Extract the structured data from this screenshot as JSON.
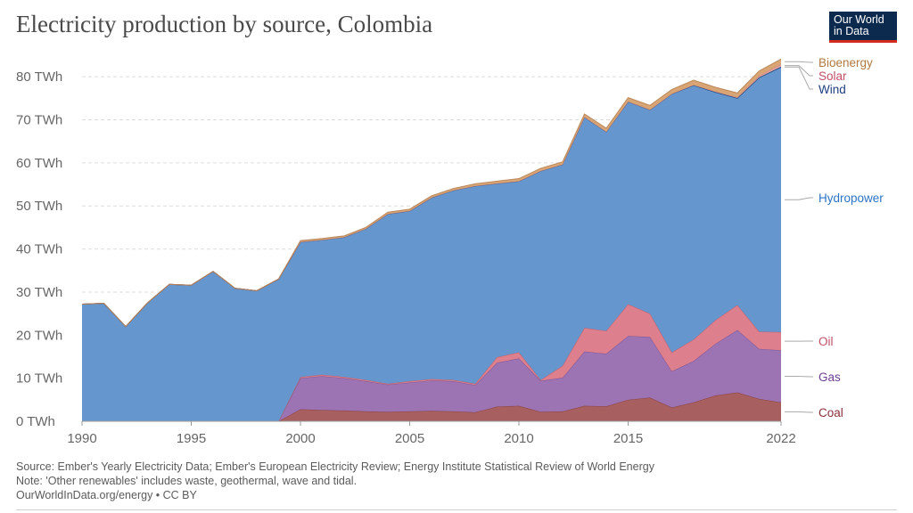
{
  "header": {
    "title": "Electricity production by source, Colombia",
    "logo_line1": "Our World",
    "logo_line2": "in Data"
  },
  "footer": {
    "source": "Source: Ember's Yearly Electricity Data; Ember's European Electricity Review; Energy Institute Statistical Review of World Energy",
    "note": "Note: 'Other renewables' includes waste, geothermal, wave and tidal.",
    "url": "OurWorldInData.org/energy • CC BY"
  },
  "chart_data": {
    "type": "area",
    "stacked": true,
    "x": [
      1990,
      1991,
      1992,
      1993,
      1994,
      1995,
      1996,
      1997,
      1998,
      1999,
      2000,
      2001,
      2002,
      2003,
      2004,
      2005,
      2006,
      2007,
      2008,
      2009,
      2010,
      2011,
      2012,
      2013,
      2014,
      2015,
      2016,
      2017,
      2018,
      2019,
      2020,
      2021,
      2022
    ],
    "xlim": [
      1990,
      2022
    ],
    "x_ticks": [
      1990,
      1995,
      2000,
      2005,
      2010,
      2015,
      2022
    ],
    "ylim": [
      0,
      85
    ],
    "y_ticks": [
      0,
      10,
      20,
      30,
      40,
      50,
      60,
      70,
      80
    ],
    "y_tick_labels": [
      "0 TWh",
      "10 TWh",
      "20 TWh",
      "30 TWh",
      "40 TWh",
      "50 TWh",
      "60 TWh",
      "70 TWh",
      "80 TWh"
    ],
    "grid": true,
    "legend_placement": "right, inline labels",
    "series": [
      {
        "name": "Coal",
        "color": "#a85f5f",
        "label_color": "#883039",
        "values": [
          0,
          0,
          0,
          0,
          0,
          0,
          0,
          0,
          0,
          0,
          2.8,
          2.6,
          2.5,
          2.3,
          2.2,
          2.3,
          2.4,
          2.3,
          2.1,
          3.4,
          3.6,
          2.2,
          2.3,
          3.6,
          3.5,
          5.0,
          5.5,
          3.2,
          4.4,
          6.0,
          6.7,
          5.2,
          4.4
        ]
      },
      {
        "name": "Gas",
        "color": "#9c74b4",
        "label_color": "#6d3e91",
        "values": [
          0,
          0,
          0,
          0,
          0,
          0,
          0,
          0,
          0,
          0,
          7.2,
          7.9,
          7.5,
          7.0,
          6.3,
          6.7,
          7.1,
          7.0,
          6.3,
          10.2,
          11.0,
          7.2,
          7.8,
          12.6,
          12.2,
          14.8,
          14.1,
          8.4,
          9.6,
          12.0,
          14.5,
          11.6,
          12.1
        ]
      },
      {
        "name": "Oil",
        "color": "#dd7f8d",
        "label_color": "#c15065",
        "values": [
          0,
          0,
          0,
          0,
          0,
          0,
          0,
          0,
          0,
          0,
          0.3,
          0.3,
          0.3,
          0.3,
          0.2,
          0.3,
          0.3,
          0.3,
          0.3,
          1.3,
          1.4,
          0.2,
          2.8,
          5.5,
          5.3,
          7.4,
          5.4,
          4.4,
          5.0,
          5.5,
          5.8,
          4.0,
          4.2
        ]
      },
      {
        "name": "Hydropower",
        "color": "#6596cd",
        "label_color": "#2c74c4",
        "values": [
          27.2,
          27.4,
          22.0,
          27.5,
          31.8,
          31.6,
          34.8,
          30.9,
          30.3,
          33.0,
          31.3,
          31.3,
          32.4,
          35.1,
          39.4,
          39.5,
          42.1,
          44.0,
          45.9,
          40.3,
          39.7,
          48.5,
          46.7,
          48.9,
          46.2,
          47.0,
          47.3,
          60.0,
          59.0,
          52.9,
          48.0,
          59.0,
          61.5
        ]
      },
      {
        "name": "Wind",
        "color": "#1f4e8c",
        "label_color": "#1f3d80",
        "values": [
          0,
          0,
          0,
          0,
          0,
          0,
          0,
          0,
          0,
          0.05,
          0.05,
          0.05,
          0.05,
          0.05,
          0.05,
          0.05,
          0.05,
          0.05,
          0.05,
          0.05,
          0.05,
          0.05,
          0.05,
          0.05,
          0.05,
          0.05,
          0.05,
          0.05,
          0.05,
          0.05,
          0.05,
          0.05,
          0.1
        ]
      },
      {
        "name": "Solar",
        "color": "#e3a3a3",
        "label_color": "#c15065",
        "values": [
          0,
          0,
          0,
          0,
          0,
          0,
          0,
          0,
          0,
          0,
          0,
          0,
          0,
          0,
          0,
          0,
          0,
          0,
          0,
          0,
          0,
          0,
          0,
          0,
          0,
          0,
          0,
          0,
          0.05,
          0.1,
          0.2,
          0.4,
          0.6
        ]
      },
      {
        "name": "Bioenergy",
        "color": "#d9a574",
        "label_color": "#b07840",
        "values": [
          0,
          0,
          0,
          0,
          0,
          0,
          0,
          0,
          0,
          0,
          0.3,
          0.3,
          0.3,
          0.3,
          0.4,
          0.4,
          0.4,
          0.4,
          0.5,
          0.5,
          0.6,
          0.6,
          0.6,
          0.7,
          0.8,
          0.9,
          1.0,
          1.0,
          1.1,
          1.0,
          1.0,
          1.1,
          1.2
        ]
      }
    ]
  }
}
